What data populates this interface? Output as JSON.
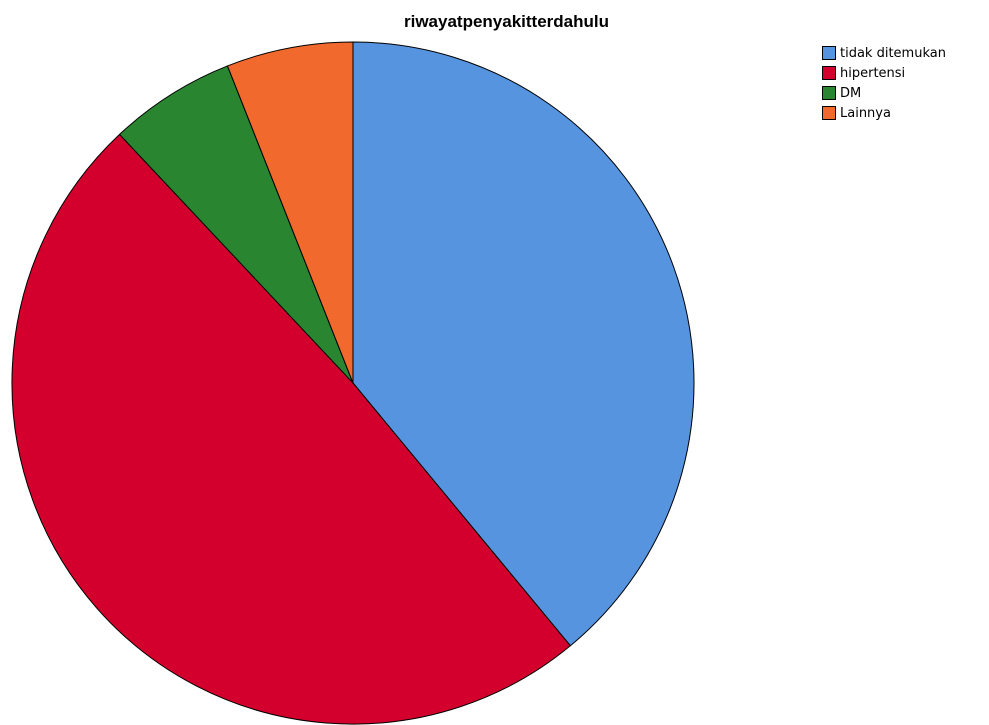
{
  "chart_data": {
    "type": "pie",
    "title": "riwayatpenyakitterdahulu",
    "legend_position": "top-right",
    "start": "top",
    "direction": "clockwise",
    "slices": [
      {
        "label": "tidak ditemukan",
        "value": 39,
        "color": "#5694E0"
      },
      {
        "label": "hipertensi",
        "value": 49,
        "color": "#D3002D"
      },
      {
        "label": "DM",
        "value": 6,
        "color": "#2A8531"
      },
      {
        "label": "Lainnya",
        "value": 6,
        "color": "#F2692D"
      }
    ]
  }
}
